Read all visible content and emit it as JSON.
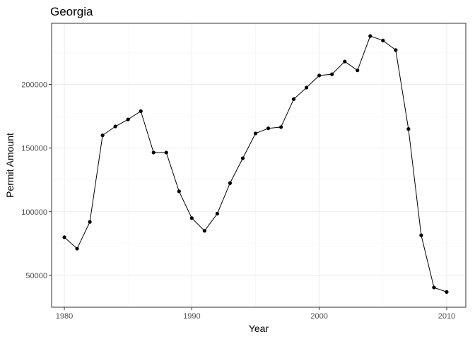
{
  "chart_data": {
    "type": "line",
    "title": "Georgia",
    "xlabel": "Year",
    "ylabel": "Permit Amount",
    "xlim": [
      1979,
      2011.5
    ],
    "ylim": [
      25000,
      248000
    ],
    "x_ticks": [
      1980,
      1990,
      2000,
      2010
    ],
    "y_ticks": [
      50000,
      100000,
      150000,
      200000
    ],
    "x_tick_labels": [
      "1980",
      "1990",
      "2000",
      "2010"
    ],
    "y_tick_labels": [
      "50000",
      "100000",
      "150000",
      "200000"
    ],
    "grid": true,
    "legend": "none",
    "x": [
      1980,
      1981,
      1982,
      1983,
      1984,
      1985,
      1986,
      1987,
      1988,
      1989,
      1990,
      1991,
      1992,
      1993,
      1994,
      1995,
      1996,
      1997,
      1998,
      1999,
      2000,
      2001,
      2002,
      2003,
      2004,
      2005,
      2006,
      2007,
      2008,
      2009,
      2010
    ],
    "values": [
      80000,
      71000,
      92000,
      160000,
      167000,
      172500,
      179000,
      146500,
      146500,
      116000,
      95000,
      85000,
      98500,
      122500,
      142000,
      161500,
      165500,
      166500,
      188500,
      197500,
      207000,
      208000,
      218000,
      211000,
      238000,
      234500,
      227000,
      165000,
      81500,
      40500,
      37000
    ]
  }
}
